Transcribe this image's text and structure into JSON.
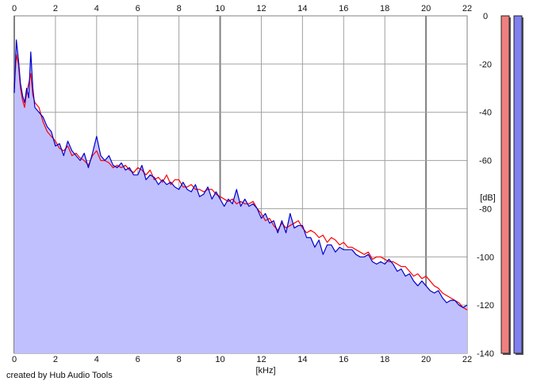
{
  "chart_data": {
    "type": "line",
    "xlabel": "[kHz]",
    "ylabel": "[dB]",
    "xlim": [
      0,
      22
    ],
    "ylim": [
      -140,
      0
    ],
    "x_ticks": [
      0,
      2,
      4,
      6,
      8,
      10,
      12,
      14,
      16,
      18,
      20,
      22
    ],
    "y_ticks": [
      0,
      -20,
      -40,
      -60,
      -80,
      -100,
      -120,
      -140
    ],
    "x_tick_labels": [
      "0",
      "2",
      "4",
      "6",
      "8",
      "10",
      "12",
      "14",
      "16",
      "18",
      "20",
      "22"
    ],
    "y_tick_labels": [
      "0",
      "-20",
      "-40",
      "-60",
      "-80",
      "-100",
      "-120",
      "-140"
    ],
    "grid": true,
    "series": [
      {
        "color": "#ff0000",
        "x": [
          0,
          0.1,
          0.2,
          0.3,
          0.4,
          0.5,
          0.6,
          0.7,
          0.8,
          0.9,
          1.0,
          1.2,
          1.4,
          1.6,
          1.8,
          2.0,
          2.2,
          2.4,
          2.6,
          2.8,
          3.0,
          3.2,
          3.4,
          3.6,
          3.8,
          4.0,
          4.2,
          4.4,
          4.6,
          4.8,
          5.0,
          5.2,
          5.4,
          5.6,
          5.8,
          6.0,
          6.2,
          6.4,
          6.6,
          6.8,
          7.0,
          7.2,
          7.4,
          7.6,
          7.8,
          8.0,
          8.2,
          8.4,
          8.6,
          8.8,
          9.0,
          9.2,
          9.4,
          9.6,
          9.8,
          10.0,
          10.2,
          10.4,
          10.6,
          10.8,
          11.0,
          11.2,
          11.4,
          11.6,
          11.8,
          12.0,
          12.2,
          12.4,
          12.6,
          12.8,
          13.0,
          13.2,
          13.4,
          13.6,
          13.8,
          14.0,
          14.2,
          14.4,
          14.6,
          14.8,
          15.0,
          15.2,
          15.4,
          15.6,
          15.8,
          16.0,
          16.2,
          16.4,
          16.6,
          16.8,
          17.0,
          17.2,
          17.4,
          17.6,
          17.8,
          18.0,
          18.2,
          18.4,
          18.6,
          18.8,
          19.0,
          19.2,
          19.4,
          19.6,
          19.8,
          20.0,
          20.2,
          20.4,
          20.6,
          20.8,
          21.0,
          21.2,
          21.4,
          21.6,
          21.8,
          22.0
        ],
        "y": [
          -30,
          -16,
          -20,
          -30,
          -35,
          -38,
          -32,
          -28,
          -24,
          -33,
          -36,
          -38,
          -44,
          -48,
          -50,
          -52,
          -55,
          -56,
          -54,
          -58,
          -57,
          -59,
          -60,
          -62,
          -58,
          -56,
          -60,
          -60,
          -61,
          -63,
          -62,
          -63,
          -62,
          -64,
          -65,
          -63,
          -64,
          -66,
          -64,
          -68,
          -67,
          -69,
          -66,
          -70,
          -68,
          -68,
          -71,
          -71,
          -70,
          -72,
          -72,
          -73,
          -72,
          -72,
          -74,
          -75,
          -76,
          -77,
          -76,
          -78,
          -77,
          -78,
          -78,
          -77,
          -80,
          -82,
          -85,
          -84,
          -87,
          -89,
          -86,
          -88,
          -87,
          -86,
          -85,
          -88,
          -90,
          -89,
          -90,
          -92,
          -91,
          -94,
          -92,
          -93,
          -95,
          -94,
          -96,
          -96,
          -97,
          -98,
          -99,
          -98,
          -101,
          -100,
          -100,
          -101,
          -102,
          -102,
          -103,
          -104,
          -104,
          -106,
          -108,
          -107,
          -109,
          -108,
          -110,
          -112,
          -113,
          -115,
          -116,
          -117,
          -118,
          -119,
          -121,
          -122
        ]
      },
      {
        "color": "#0000cc",
        "x": [
          0,
          0.1,
          0.2,
          0.3,
          0.4,
          0.5,
          0.6,
          0.7,
          0.8,
          0.9,
          1.0,
          1.2,
          1.4,
          1.6,
          1.8,
          2.0,
          2.2,
          2.4,
          2.6,
          2.8,
          3.0,
          3.2,
          3.4,
          3.6,
          3.8,
          4.0,
          4.2,
          4.4,
          4.6,
          4.8,
          5.0,
          5.2,
          5.4,
          5.6,
          5.8,
          6.0,
          6.2,
          6.4,
          6.6,
          6.8,
          7.0,
          7.2,
          7.4,
          7.6,
          7.8,
          8.0,
          8.2,
          8.4,
          8.6,
          8.8,
          9.0,
          9.2,
          9.4,
          9.6,
          9.8,
          10.0,
          10.2,
          10.4,
          10.6,
          10.8,
          11.0,
          11.2,
          11.4,
          11.6,
          11.8,
          12.0,
          12.2,
          12.4,
          12.6,
          12.8,
          13.0,
          13.2,
          13.4,
          13.6,
          13.8,
          14.0,
          14.2,
          14.4,
          14.6,
          14.8,
          15.0,
          15.2,
          15.4,
          15.6,
          15.8,
          16.0,
          16.2,
          16.4,
          16.6,
          16.8,
          17.0,
          17.2,
          17.4,
          17.6,
          17.8,
          18.0,
          18.2,
          18.4,
          18.6,
          18.8,
          19.0,
          19.2,
          19.4,
          19.6,
          19.8,
          20.0,
          20.2,
          20.4,
          20.6,
          20.8,
          21.0,
          21.2,
          21.4,
          21.6,
          21.8,
          22.0
        ],
        "y": [
          -32,
          -10,
          -18,
          -28,
          -33,
          -36,
          -30,
          -34,
          -15,
          -30,
          -38,
          -40,
          -42,
          -46,
          -48,
          -54,
          -53,
          -58,
          -52,
          -56,
          -58,
          -60,
          -57,
          -63,
          -57,
          -50,
          -58,
          -60,
          -58,
          -62,
          -63,
          -61,
          -64,
          -63,
          -66,
          -66,
          -62,
          -68,
          -66,
          -67,
          -70,
          -68,
          -70,
          -69,
          -71,
          -72,
          -69,
          -72,
          -73,
          -70,
          -75,
          -74,
          -71,
          -76,
          -73,
          -76,
          -79,
          -76,
          -78,
          -72,
          -79,
          -76,
          -79,
          -78,
          -80,
          -84,
          -82,
          -86,
          -85,
          -90,
          -85,
          -90,
          -82,
          -88,
          -87,
          -87,
          -92,
          -92,
          -96,
          -93,
          -99,
          -95,
          -95,
          -98,
          -96,
          -97,
          -97,
          -97,
          -99,
          -100,
          -100,
          -99,
          -102,
          -103,
          -102,
          -103,
          -101,
          -103,
          -106,
          -105,
          -108,
          -107,
          -110,
          -112,
          -110,
          -112,
          -114,
          -115,
          -114,
          -117,
          -119,
          -118,
          -118,
          -120,
          -121,
          -120
        ]
      }
    ],
    "level_meters": [
      {
        "color": "#f08080"
      },
      {
        "color": "#8080f0"
      }
    ],
    "fill_color": "#c0c0ff",
    "grid_color": "#a0a0a0",
    "grid_major_color": "#808080"
  },
  "footer": {
    "credit": "created by Hub Audio Tools"
  }
}
